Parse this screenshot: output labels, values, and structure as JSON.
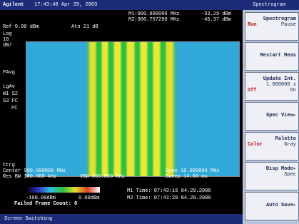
{
  "header": {
    "brand": "Agilent",
    "datetime": "17:43:48 Apr 29, 2003",
    "mode": "Spectrogram"
  },
  "markers": [
    {
      "label": "M1:900.000000 MHz",
      "level": "-33.29 dBm"
    },
    {
      "label": "M2:900.757290 MHz",
      "level": "-45.37 dBm"
    }
  ],
  "settings": {
    "ref": "Ref 0.00 dBm",
    "atten": "Atn 21 dB",
    "scale": [
      "Log",
      "10",
      "dB/"
    ],
    "side": [
      "PAvg",
      "LgAv",
      "W1 S2",
      "S3 FC",
      "PC"
    ],
    "trig": "Ctrg"
  },
  "footer": {
    "center": "Center 900.000000 MHz",
    "rbw": "Res BW 100.000 kHz",
    "vbw": "VBW 300.000 kHz",
    "span": "Span 10.000000 MHz",
    "sweep": "Sweep 14.00 ms"
  },
  "colorbar": {
    "min": "-100.00dBm",
    "max": "0.00dBm",
    "failed": "Failed Frame Count: 0"
  },
  "marker_times": [
    "M1 Time: 07:43:16 04.29.2008",
    "M2 Time: 07:43:28 04.29.2008"
  ],
  "softkeys": [
    {
      "label": "Spectrogram",
      "options": [
        "Run",
        "Pause"
      ]
    },
    {
      "label": "Restart Meas",
      "options": []
    },
    {
      "label": "Update Int.",
      "value": "1.000000 s",
      "options": [
        "Off",
        "On"
      ]
    },
    {
      "label": "Spec View▸",
      "options": []
    },
    {
      "label": "Palette",
      "options": [
        "Color",
        "Gray"
      ]
    },
    {
      "label": "Disp Mode▸",
      "value": "Spec",
      "options": []
    },
    {
      "label": "Auto Save▸",
      "options": []
    }
  ],
  "status": "Screen Switching"
}
